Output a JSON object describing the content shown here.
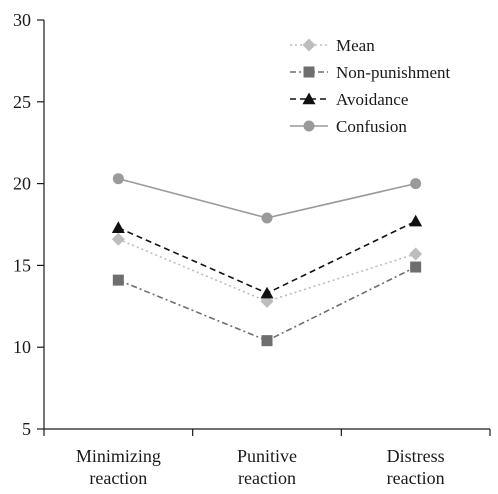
{
  "chart_data": {
    "type": "line",
    "categories": [
      [
        "Minimizing",
        "reaction"
      ],
      [
        "Punitive",
        "reaction"
      ],
      [
        "Distress",
        "reaction"
      ]
    ],
    "ylim": [
      5,
      30
    ],
    "yticks": [
      5,
      10,
      15,
      20,
      25,
      30
    ],
    "grid": false,
    "legend_position": "top-right",
    "series": [
      {
        "name": "Mean",
        "values": [
          16.6,
          12.8,
          15.7
        ],
        "color": "#bdbdbd",
        "marker": "diamond",
        "dash": "dotted"
      },
      {
        "name": "Non-punishment",
        "values": [
          14.1,
          10.4,
          14.9
        ],
        "color": "#6e6e6e",
        "marker": "square",
        "dash": "dashdot"
      },
      {
        "name": "Avoidance",
        "values": [
          17.3,
          13.3,
          17.7
        ],
        "color": "#111111",
        "marker": "triangle",
        "dash": "dashed"
      },
      {
        "name": "Confusion",
        "values": [
          20.3,
          17.9,
          20.0
        ],
        "color": "#9a9a9a",
        "marker": "circle",
        "dash": "solid"
      }
    ]
  }
}
